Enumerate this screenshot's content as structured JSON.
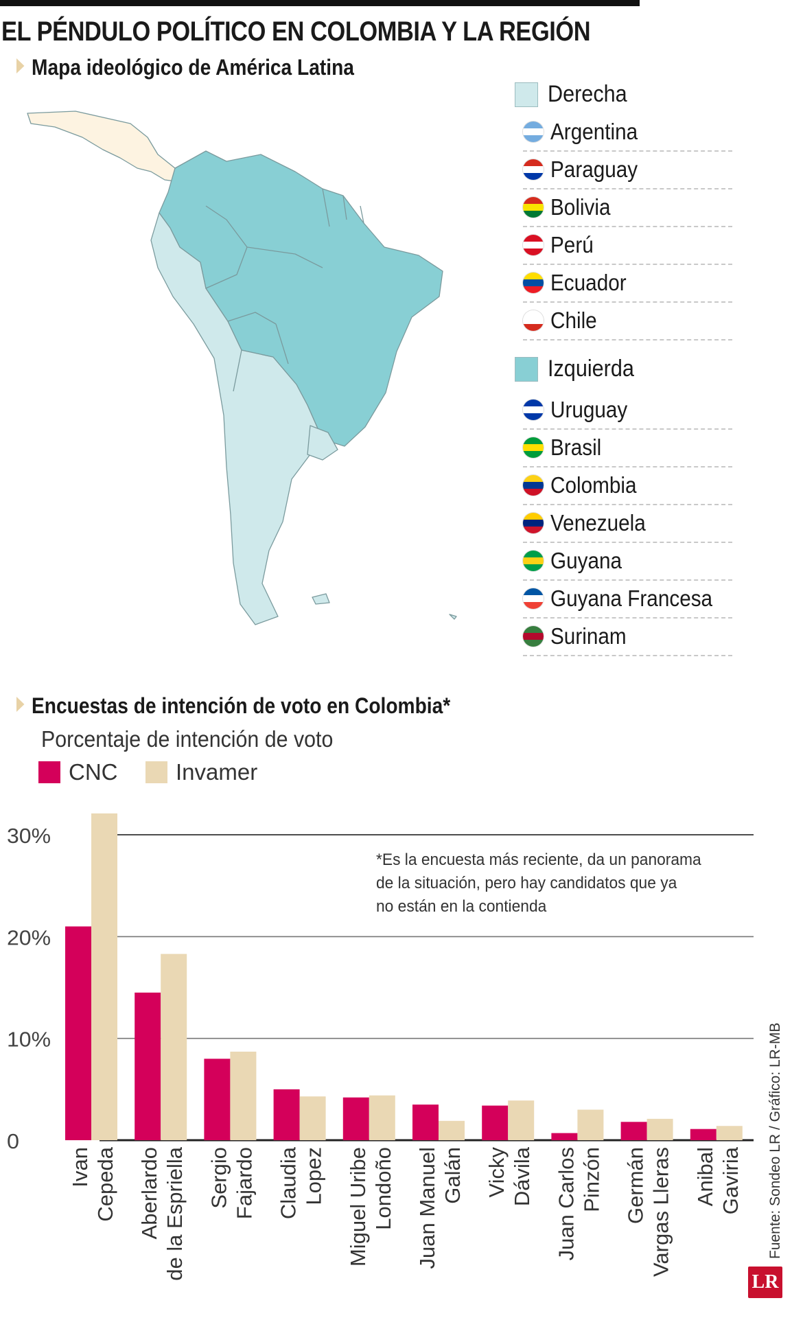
{
  "title": "EL PÉNDULO POLÍTICO EN COLOMBIA Y LA REGIÓN",
  "map_section": {
    "heading": "Mapa ideológico de América Latina",
    "colors": {
      "derecha": "#cfe9eb",
      "izquierda": "#88cfd4",
      "other": "#fdf3e1",
      "border": "#6d8f92"
    },
    "groups": [
      {
        "label": "Derecha",
        "color": "#cfe9eb",
        "countries": [
          {
            "name": "Argentina",
            "flag": [
              "#74acdf",
              "#ffffff",
              "#74acdf"
            ]
          },
          {
            "name": "Paraguay",
            "flag": [
              "#d52b1e",
              "#ffffff",
              "#0038a8"
            ]
          },
          {
            "name": "Bolivia",
            "flag": [
              "#d52b1e",
              "#f9e300",
              "#007934"
            ]
          },
          {
            "name": "Perú",
            "flag": [
              "#d91023",
              "#ffffff",
              "#d91023"
            ]
          },
          {
            "name": "Ecuador",
            "flag": [
              "#ffdd00",
              "#034ea2",
              "#ed1c24"
            ]
          },
          {
            "name": "Chile",
            "flag": [
              "#ffffff",
              "#ffffff",
              "#d52b1e"
            ]
          }
        ]
      },
      {
        "label": "Izquierda",
        "color": "#88cfd4",
        "countries": [
          {
            "name": "Uruguay",
            "flag": [
              "#0038a8",
              "#ffffff",
              "#0038a8"
            ]
          },
          {
            "name": "Brasil",
            "flag": [
              "#009c3b",
              "#ffdf00",
              "#009c3b"
            ]
          },
          {
            "name": "Colombia",
            "flag": [
              "#fcd116",
              "#003893",
              "#ce1126"
            ]
          },
          {
            "name": "Venezuela",
            "flag": [
              "#ffcc00",
              "#00247d",
              "#cf142b"
            ]
          },
          {
            "name": "Guyana",
            "flag": [
              "#009e49",
              "#fcd116",
              "#009e49"
            ]
          },
          {
            "name": "Guyana Francesa",
            "flag": [
              "#0055a4",
              "#ffffff",
              "#ef4135"
            ]
          },
          {
            "name": "Surinam",
            "flag": [
              "#377e3f",
              "#b40a2d",
              "#377e3f"
            ]
          }
        ]
      }
    ]
  },
  "chart_section": {
    "heading": "Encuestas de intención de voto en Colombia*",
    "subtitle": "Porcentaje de intención de voto",
    "note_lines": [
      "*Es la encuesta más reciente, da un panorama",
      "de la situación, pero hay candidatos que ya",
      "no están en la contienda"
    ],
    "source": "Fuente: Sondeo LR / Gráfico: LR-MB",
    "logo": "LR"
  },
  "chart_data": {
    "type": "bar",
    "ylabel": "Porcentaje de intención de voto",
    "ylim": [
      0,
      30
    ],
    "yticks": [
      "0",
      "10%",
      "20%",
      "30%"
    ],
    "ytick_values": [
      0,
      10,
      20,
      30
    ],
    "grid": true,
    "legend": "top-left",
    "categories": [
      [
        "Ivan",
        "Cepeda"
      ],
      [
        "Aberlardo",
        "de la Espriella"
      ],
      [
        "Sergio",
        "Fajardo"
      ],
      [
        "Claudia",
        "Lopez"
      ],
      [
        "Miguel Uribe",
        "Londoño"
      ],
      [
        "Juan Manuel",
        "Galán"
      ],
      [
        "Vicky",
        "Dávila"
      ],
      [
        "Juan Carlos",
        "Pinzón"
      ],
      [
        "Germán",
        "Vargas Lleras"
      ],
      [
        "Anibal",
        "Gaviria"
      ]
    ],
    "series": [
      {
        "name": "CNC",
        "color": "#d4005a",
        "values": [
          21.0,
          14.5,
          8.0,
          5.0,
          4.2,
          3.5,
          3.4,
          0.7,
          1.8,
          1.1
        ]
      },
      {
        "name": "Invamer",
        "color": "#ead8b4",
        "values": [
          32.1,
          18.3,
          8.7,
          4.3,
          4.4,
          1.9,
          3.9,
          3.0,
          2.1,
          1.4
        ]
      }
    ]
  }
}
